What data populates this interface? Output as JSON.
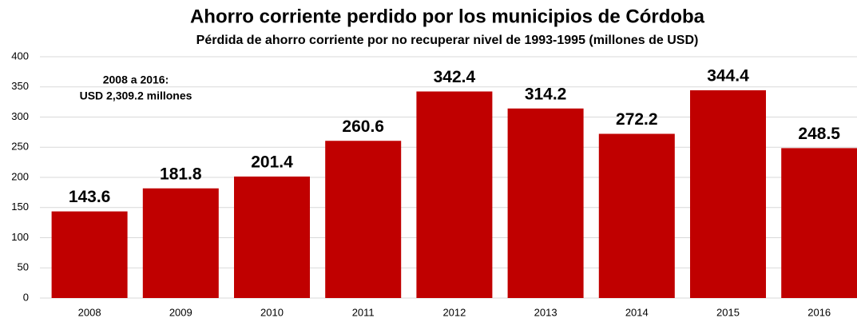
{
  "chart_data": {
    "type": "bar",
    "title": "Ahorro corriente perdido por los municipios de Córdoba",
    "subtitle": "Pérdida de ahorro corriente por no recuperar nivel de 1993-1995 (millones de USD)",
    "annotation": [
      "2008 a 2016:",
      "USD 2,309.2 millones"
    ],
    "categories": [
      "2008",
      "2009",
      "2010",
      "2011",
      "2012",
      "2013",
      "2014",
      "2015",
      "2016"
    ],
    "values": [
      143.6,
      181.8,
      201.4,
      260.6,
      342.4,
      314.2,
      272.2,
      344.4,
      248.5
    ],
    "color": "#c00000",
    "ylim": [
      0,
      400
    ],
    "yticks": [
      0,
      50,
      100,
      150,
      200,
      250,
      300,
      350,
      400
    ],
    "grid": true
  }
}
